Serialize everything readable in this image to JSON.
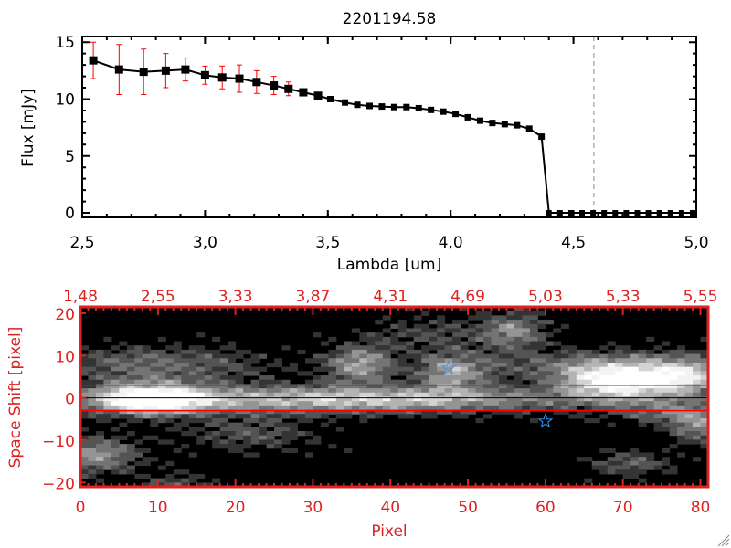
{
  "chart_data": [
    {
      "type": "line",
      "title": "2201194.58",
      "xlabel": "Lambda [um]",
      "ylabel": "Flux [mJy]",
      "xlim": [
        2.5,
        5.0
      ],
      "ylim": [
        -0.4,
        15.5
      ],
      "xticks": [
        "2.5",
        "3.0",
        "3.5",
        "4.0",
        "4.5",
        "5.0"
      ],
      "yticks": [
        "0",
        "5",
        "10",
        "15"
      ],
      "x": [
        2.545,
        2.65,
        2.75,
        2.84,
        2.92,
        3.0,
        3.07,
        3.14,
        3.21,
        3.28,
        3.34,
        3.4,
        3.46,
        3.51,
        3.57,
        3.62,
        3.67,
        3.72,
        3.77,
        3.82,
        3.87,
        3.92,
        3.97,
        4.02,
        4.07,
        4.12,
        4.17,
        4.22,
        4.27,
        4.32,
        4.37,
        4.4,
        4.445,
        4.49,
        4.535,
        4.58,
        4.625,
        4.67,
        4.715,
        4.76,
        4.805,
        4.85,
        4.895,
        4.94,
        4.985
      ],
      "y": [
        13.4,
        12.6,
        12.4,
        12.5,
        12.6,
        12.1,
        11.9,
        11.8,
        11.5,
        11.2,
        10.9,
        10.6,
        10.3,
        10.0,
        9.7,
        9.5,
        9.4,
        9.35,
        9.3,
        9.3,
        9.2,
        9.05,
        8.9,
        8.7,
        8.4,
        8.1,
        7.9,
        7.8,
        7.7,
        7.4,
        6.7,
        0,
        0,
        0,
        0,
        0,
        0,
        0,
        0,
        0,
        0,
        0,
        0,
        0,
        0
      ],
      "yerr": [
        1.6,
        2.2,
        2.0,
        1.5,
        1.0,
        0.8,
        1.0,
        1.2,
        1.0,
        0.8,
        0.6,
        0.3,
        0.2,
        0.2,
        0.2,
        0.15,
        0.15,
        0.15,
        0.15,
        0.15,
        0.15,
        0.15,
        0.15,
        0.15,
        0.15,
        0.15,
        0.15,
        0.15,
        0.15,
        0.15,
        0.15,
        0,
        0,
        0,
        0,
        0,
        0,
        0,
        0,
        0,
        0,
        0,
        0,
        0,
        0
      ],
      "vline_x": 4.583,
      "colors": {
        "line": "#000000",
        "errorbar": "#ff0000",
        "zero_line": "#ff0000",
        "vline": "#888888"
      }
    },
    {
      "type": "heatmap",
      "xlabel": "Pixel",
      "ylabel": "Space Shift [pixel]",
      "xlim": [
        0,
        81
      ],
      "ylim": [
        -21,
        21.5
      ],
      "xticks": [
        "0",
        "10",
        "20",
        "30",
        "40",
        "50",
        "60",
        "70",
        "80"
      ],
      "yticks": [
        "-20",
        "-10",
        "0",
        "10",
        "20"
      ],
      "top_xticks": [
        "1.48",
        "2.55",
        "3.33",
        "3.87",
        "4.31",
        "4.69",
        "5.03",
        "5.33",
        "5.55"
      ],
      "aperture_lines_y": [
        -3,
        3
      ],
      "center_line_y": 0,
      "stars": [
        {
          "x": 47.5,
          "y": 7
        },
        {
          "x": 60,
          "y": -5.5
        }
      ],
      "blobs": [
        [
          9,
          0,
          5,
          2.5,
          1.0
        ],
        [
          25,
          0,
          20,
          2.3,
          0.55
        ],
        [
          45,
          0,
          15,
          2,
          0.4
        ],
        [
          69,
          4,
          5,
          3,
          1.0
        ],
        [
          78,
          5,
          4,
          3,
          0.7
        ],
        [
          36,
          8,
          3,
          3,
          0.6
        ],
        [
          48,
          6,
          3,
          3,
          0.55
        ],
        [
          10,
          8,
          10,
          3,
          0.4
        ],
        [
          56,
          16,
          3,
          3,
          0.5
        ],
        [
          2,
          -13,
          4,
          3,
          0.55
        ],
        [
          80,
          -6,
          3,
          3,
          0.5
        ],
        [
          71,
          -15,
          4,
          2,
          0.35
        ],
        [
          22,
          -8,
          6,
          3,
          0.3
        ],
        [
          65,
          8,
          12,
          2.5,
          0.35
        ],
        [
          75,
          -3,
          5,
          2,
          0.3
        ],
        [
          12,
          -20,
          3,
          2,
          0.3
        ],
        [
          45,
          15,
          6,
          3,
          0.25
        ]
      ],
      "colors": {
        "axes": "#dd2222",
        "aperture": "#ff0000",
        "center": "#000000",
        "star": "#3399ff"
      }
    }
  ]
}
